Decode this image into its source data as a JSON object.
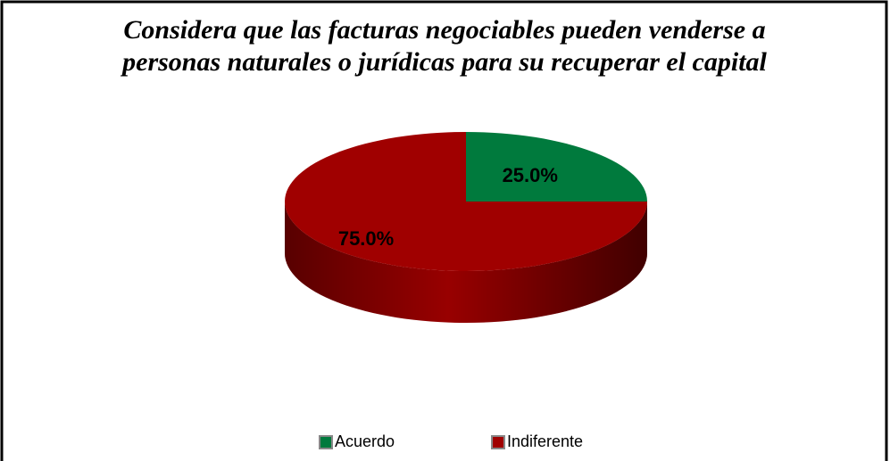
{
  "chart_data": {
    "type": "pie",
    "title": "Considera que las facturas negociables pueden venderse a personas naturales o jurídicas para su recuperar el capital",
    "categories": [
      "Acuerdo",
      "Indiferente"
    ],
    "values": [
      25,
      75
    ],
    "value_labels": [
      "25.0%",
      "75.0%"
    ],
    "colors": [
      "#007a3d",
      "#a00000"
    ],
    "legend": "bottom"
  }
}
